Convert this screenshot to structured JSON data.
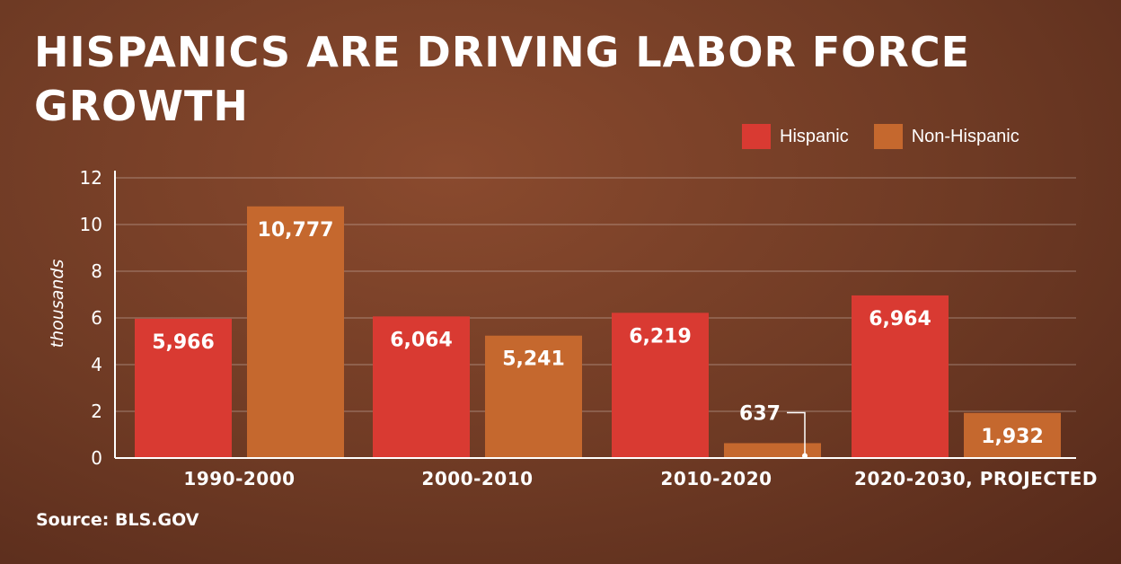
{
  "chart_data": {
    "type": "bar",
    "title": "HISPANICS ARE DRIVING LABOR FORCE GROWTH",
    "ylabel": "thousands",
    "xlabel": "",
    "ylim": [
      0,
      12
    ],
    "yticks": [
      0,
      2,
      4,
      6,
      8,
      10,
      12
    ],
    "grid": true,
    "legend_position": "top-right",
    "categories": [
      "1990-2000",
      "2000-2010",
      "2010-2020",
      "2020-2030, PROJECTED"
    ],
    "series": [
      {
        "name": "Hispanic",
        "color": "#d93a32",
        "values": [
          5.966,
          6.064,
          6.219,
          6.964
        ],
        "labels": [
          "5,966",
          "6,064",
          "6,219",
          "6,964"
        ]
      },
      {
        "name": "Non-Hispanic",
        "color": "#c5682e",
        "values": [
          10.777,
          5.241,
          0.637,
          1.932
        ],
        "labels": [
          "10,777",
          "5,241",
          "637",
          "1,932"
        ]
      }
    ],
    "source": "Source: BLS.GOV"
  }
}
